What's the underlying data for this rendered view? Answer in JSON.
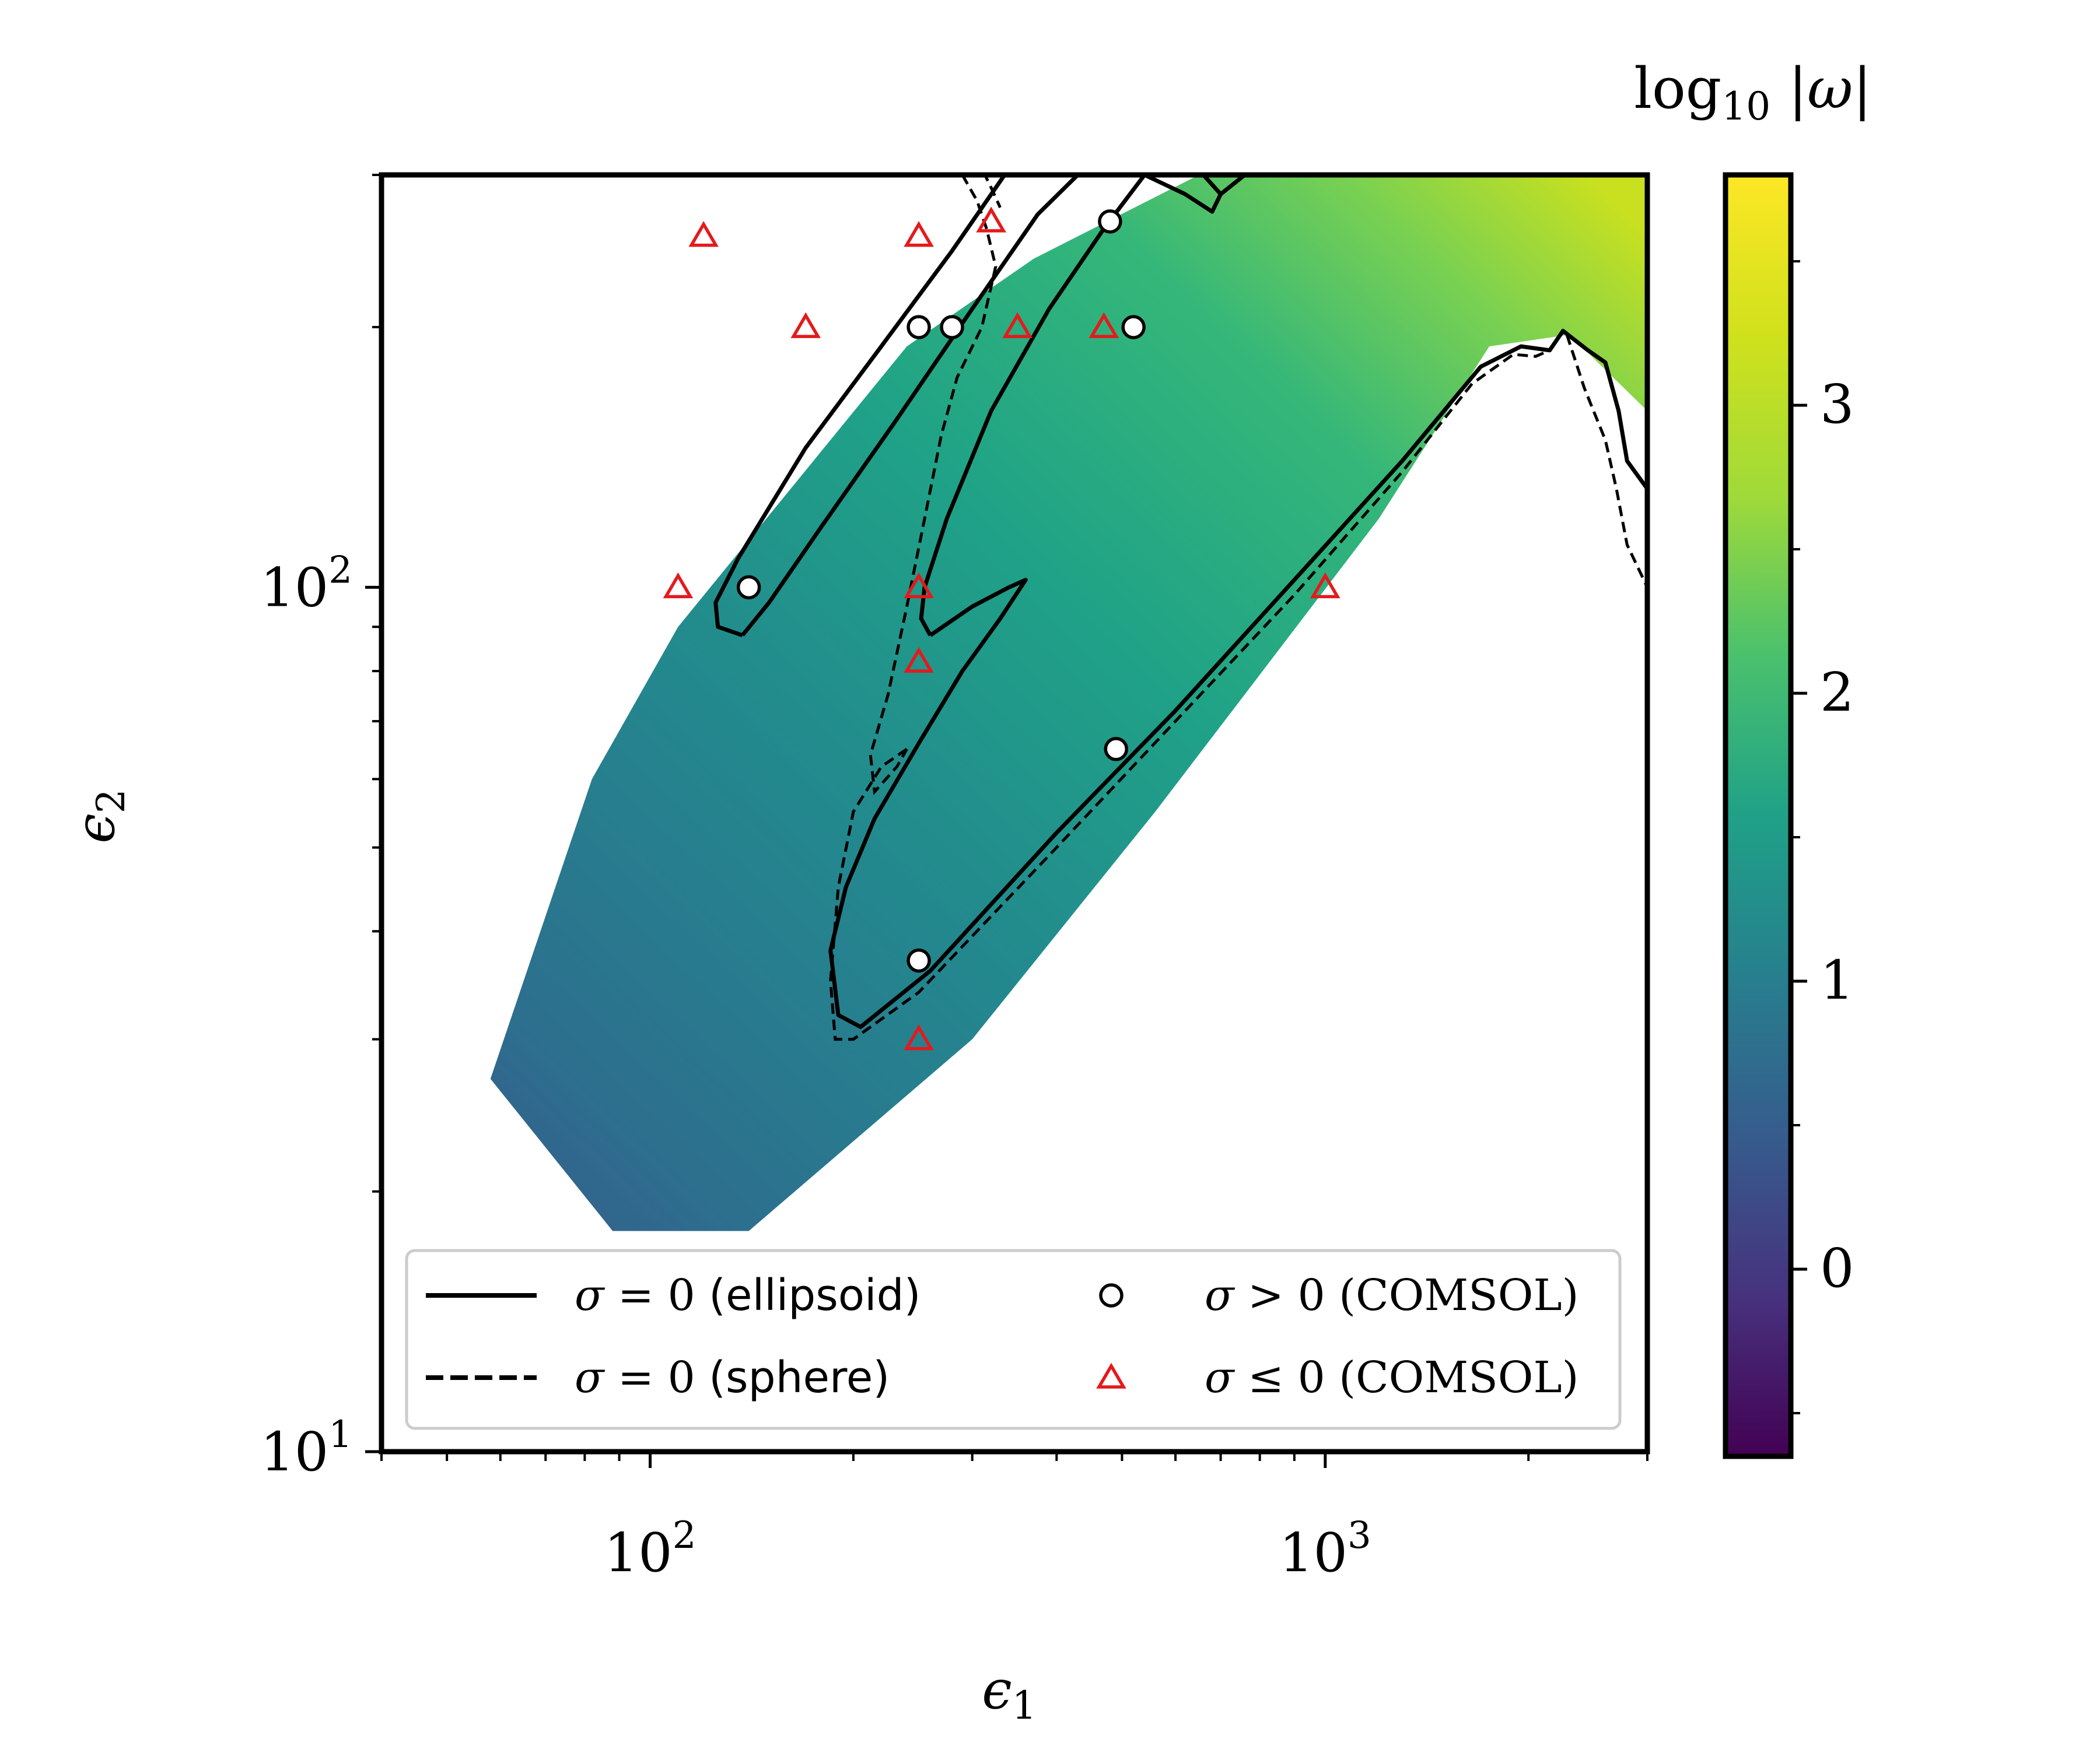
{
  "chart_data": {
    "type": "heatmap",
    "x_axis": {
      "label_symbol": "ϵ",
      "label_sub": "1",
      "scale": "log",
      "range": [
        40,
        3000
      ],
      "major_ticks": [
        {
          "value": 100,
          "base": "10",
          "exp": "2"
        },
        {
          "value": 1000,
          "base": "10",
          "exp": "3"
        }
      ]
    },
    "y_axis": {
      "label_symbol": "ϵ",
      "label_sub": "2",
      "scale": "log",
      "range": [
        10,
        300
      ],
      "major_ticks": [
        {
          "value": 10,
          "base": "10",
          "exp": "1"
        },
        {
          "value": 100,
          "base": "10",
          "exp": "2"
        }
      ]
    },
    "colorbar": {
      "title_pre": "log",
      "title_sub": "10",
      "title_post": " |ω|",
      "range": [
        -0.65,
        3.8
      ],
      "ticks": [
        {
          "value": 0,
          "label": "0"
        },
        {
          "value": 1,
          "label": "1"
        },
        {
          "value": 2,
          "label": "2"
        },
        {
          "value": 3,
          "label": "3"
        }
      ],
      "colormap": "viridis"
    },
    "heatmap_region": [
      [
        58,
        27
      ],
      [
        88,
        18
      ],
      [
        140,
        18
      ],
      [
        300,
        30
      ],
      [
        560,
        55
      ],
      [
        1200,
        120
      ],
      [
        1750,
        190
      ],
      [
        2300,
        196
      ],
      [
        3000,
        160
      ],
      [
        3000,
        300
      ],
      [
        650,
        300
      ],
      [
        370,
        240
      ],
      [
        240,
        190
      ],
      [
        110,
        90
      ],
      [
        82,
        60
      ],
      [
        58,
        27
      ]
    ],
    "heatmap_field": "log10|ω| increasing toward upper right; ~-0.3 at lower left to ~3.5 at upper right corner",
    "ellipsoid_curves": [
      [
        [
          137,
          88
        ],
        [
          126,
          90
        ],
        [
          125,
          96
        ],
        [
          135,
          108
        ],
        [
          170,
          145
        ],
        [
          220,
          190
        ],
        [
          280,
          245
        ],
        [
          335,
          300
        ]
      ],
      [
        [
          137,
          88
        ],
        [
          150,
          96
        ],
        [
          180,
          118
        ],
        [
          230,
          155
        ],
        [
          300,
          210
        ],
        [
          375,
          270
        ],
        [
          430,
          300
        ]
      ],
      [
        [
          260,
          88
        ],
        [
          252,
          92
        ],
        [
          255,
          100
        ],
        [
          275,
          120
        ],
        [
          320,
          160
        ],
        [
          390,
          210
        ],
        [
          470,
          260
        ],
        [
          540,
          300
        ]
      ],
      [
        [
          260,
          88
        ],
        [
          300,
          95
        ],
        [
          340,
          100
        ],
        [
          360,
          102
        ],
        [
          330,
          92
        ],
        [
          290,
          80
        ],
        [
          250,
          66
        ],
        [
          215,
          54
        ],
        [
          195,
          45
        ],
        [
          185,
          38
        ],
        [
          190,
          32
        ],
        [
          205,
          31
        ],
        [
          260,
          36
        ],
        [
          400,
          52
        ],
        [
          600,
          72
        ],
        [
          900,
          102
        ],
        [
          1300,
          140
        ],
        [
          1700,
          180
        ],
        [
          1950,
          190
        ],
        [
          2150,
          188
        ],
        [
          2250,
          198
        ],
        [
          2450,
          188
        ],
        [
          2600,
          182
        ],
        [
          2720,
          160
        ],
        [
          2800,
          140
        ],
        [
          3000,
          130
        ]
      ],
      [
        [
          540,
          300
        ],
        [
          620,
          285
        ],
        [
          680,
          272
        ],
        [
          700,
          285
        ],
        [
          660,
          300
        ]
      ],
      [
        [
          700,
          285
        ],
        [
          760,
          300
        ]
      ]
    ],
    "sphere_curves": [
      [
        [
          290,
          300
        ],
        [
          305,
          280
        ],
        [
          315,
          260
        ],
        [
          325,
          235
        ],
        [
          310,
          200
        ],
        [
          285,
          175
        ],
        [
          270,
          150
        ],
        [
          255,
          120
        ],
        [
          240,
          95
        ],
        [
          225,
          75
        ],
        [
          212,
          64
        ],
        [
          215,
          58
        ],
        [
          232,
          62
        ],
        [
          240,
          65
        ]
      ],
      [
        [
          292,
          325
        ],
        [
          310,
          305
        ],
        [
          320,
          290
        ],
        [
          330,
          275
        ]
      ],
      [
        [
          240,
          65
        ],
        [
          220,
          62
        ],
        [
          200,
          55
        ],
        [
          190,
          45
        ],
        [
          185,
          35
        ],
        [
          188,
          30
        ],
        [
          200,
          30
        ],
        [
          250,
          34
        ],
        [
          400,
          50
        ],
        [
          600,
          70
        ],
        [
          900,
          98
        ],
        [
          1300,
          136
        ],
        [
          1650,
          172
        ],
        [
          1900,
          186
        ],
        [
          2050,
          185
        ],
        [
          2150,
          188
        ]
      ],
      [
        [
          2280,
          196
        ],
        [
          2420,
          170
        ],
        [
          2600,
          148
        ],
        [
          2700,
          130
        ],
        [
          2800,
          112
        ],
        [
          3000,
          100
        ]
      ]
    ],
    "series": [
      {
        "name": "σ = 0 (ellipsoid)",
        "kind": "solid-line"
      },
      {
        "name": "σ = 0 (sphere)",
        "kind": "dashed-line"
      },
      {
        "name": "σ > 0 (COMSOL)",
        "kind": "circle-marker",
        "points": [
          [
            140,
            100
          ],
          [
            250,
            200
          ],
          [
            280,
            200
          ],
          [
            480,
            265
          ],
          [
            520,
            200
          ],
          [
            490,
            65
          ],
          [
            250,
            37
          ]
        ]
      },
      {
        "name": "σ ≤ 0 (COMSOL)",
        "kind": "triangle-marker",
        "points": [
          [
            110,
            100
          ],
          [
            120,
            255
          ],
          [
            170,
            200
          ],
          [
            250,
            255
          ],
          [
            320,
            265
          ],
          [
            350,
            200
          ],
          [
            470,
            200
          ],
          [
            250,
            100
          ],
          [
            250,
            82
          ],
          [
            250,
            30
          ],
          [
            1000,
            100
          ]
        ]
      }
    ],
    "legend": {
      "position": "lower",
      "entries": [
        {
          "symbol": "σ",
          "rel": " = 0 ",
          "note": "(ellipsoid)",
          "note_style": "plain"
        },
        {
          "symbol": "σ",
          "rel": " > 0 ",
          "note": "(COMSOL)",
          "note_style": "smallcaps"
        },
        {
          "symbol": "σ",
          "rel": " = 0 ",
          "note": "(sphere)",
          "note_style": "plain"
        },
        {
          "symbol": "σ",
          "rel": " ≤ 0 ",
          "note": "(COMSOL)",
          "note_style": "smallcaps"
        }
      ]
    },
    "grid": false
  }
}
